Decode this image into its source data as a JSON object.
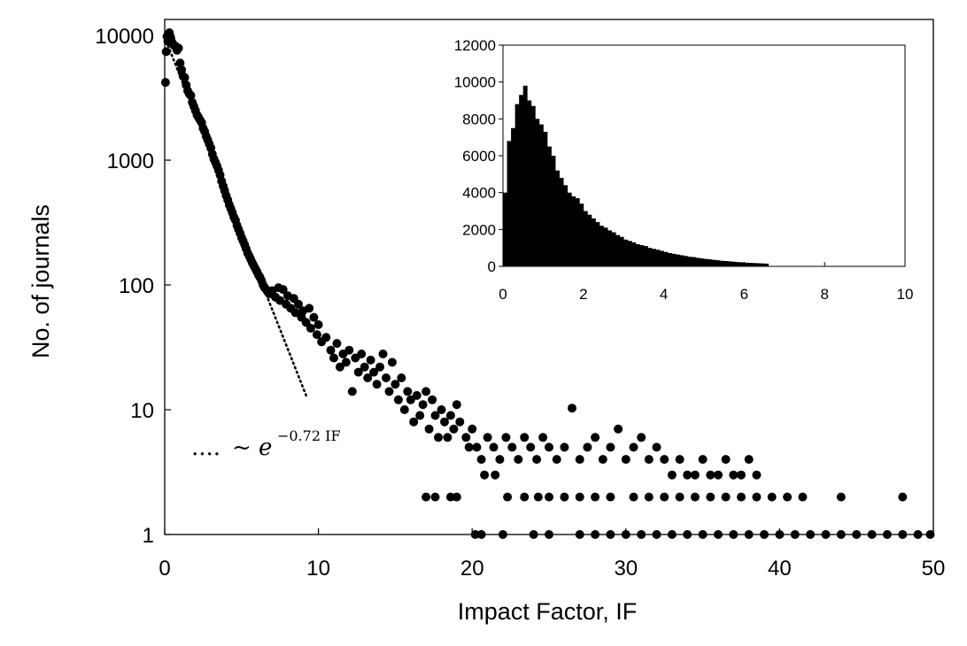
{
  "chart_data": [
    {
      "type": "scatter",
      "xlabel": "Impact Factor, IF",
      "ylabel": "No. of journals",
      "xlim": [
        0,
        50
      ],
      "ylim": [
        1,
        10000
      ],
      "yscale": "log",
      "xticks": [
        0,
        10,
        20,
        30,
        40,
        50
      ],
      "yticks": [
        1,
        10,
        100,
        1000,
        10000
      ],
      "xtick_labels": [
        "0",
        "10",
        "20",
        "30",
        "40",
        "50"
      ],
      "ytick_labels": [
        "1",
        "10",
        "100",
        "1000",
        "10000"
      ],
      "grid": false,
      "annotation": {
        "dots": "....",
        "prefix": "~ e",
        "exponent": "−0.72 IF"
      },
      "fit_line": {
        "style": "dotted",
        "x": [
          0.1,
          9.2
        ],
        "y": [
          9000,
          13
        ]
      },
      "series": [
        {
          "points": [
            [
              0.05,
              4200
            ],
            [
              0.1,
              7400
            ],
            [
              0.15,
              9800
            ],
            [
              0.2,
              9000
            ],
            [
              0.25,
              9400
            ],
            [
              0.3,
              10500
            ],
            [
              0.35,
              9900
            ],
            [
              0.4,
              9500
            ],
            [
              0.5,
              8700
            ],
            [
              0.6,
              8300
            ],
            [
              0.7,
              8200
            ],
            [
              0.8,
              7600
            ],
            [
              0.9,
              7900
            ],
            [
              1.0,
              6000
            ],
            [
              1.1,
              5300
            ],
            [
              1.2,
              4700
            ],
            [
              1.3,
              4600
            ],
            [
              1.4,
              4000
            ],
            [
              1.5,
              3600
            ],
            [
              1.6,
              3400
            ],
            [
              1.7,
              3300
            ],
            [
              1.8,
              2900
            ],
            [
              1.9,
              2700
            ],
            [
              2.0,
              2500
            ],
            [
              2.1,
              2300
            ],
            [
              2.2,
              2200
            ],
            [
              2.3,
              2100
            ],
            [
              2.4,
              2000
            ],
            [
              2.5,
              1800
            ],
            [
              2.6,
              1700
            ],
            [
              2.7,
              1550
            ],
            [
              2.8,
              1450
            ],
            [
              2.9,
              1350
            ],
            [
              3.0,
              1250
            ],
            [
              3.1,
              1120
            ],
            [
              3.2,
              1020
            ],
            [
              3.3,
              960
            ],
            [
              3.4,
              900
            ],
            [
              3.5,
              830
            ],
            [
              3.6,
              760
            ],
            [
              3.7,
              680
            ],
            [
              3.8,
              620
            ],
            [
              3.9,
              570
            ],
            [
              4.0,
              520
            ],
            [
              4.1,
              480
            ],
            [
              4.2,
              440
            ],
            [
              4.3,
              410
            ],
            [
              4.4,
              380
            ],
            [
              4.5,
              350
            ],
            [
              4.6,
              330
            ],
            [
              4.7,
              300
            ],
            [
              4.8,
              280
            ],
            [
              4.9,
              260
            ],
            [
              5.0,
              240
            ],
            [
              5.1,
              225
            ],
            [
              5.2,
              210
            ],
            [
              5.3,
              195
            ],
            [
              5.4,
              180
            ],
            [
              5.5,
              170
            ],
            [
              5.6,
              160
            ],
            [
              5.7,
              150
            ],
            [
              5.8,
              142
            ],
            [
              5.9,
              135
            ],
            [
              6.0,
              128
            ],
            [
              6.1,
              120
            ],
            [
              6.2,
              115
            ],
            [
              6.3,
              108
            ],
            [
              6.4,
              100
            ],
            [
              6.5,
              95
            ],
            [
              6.6,
              92
            ],
            [
              6.7,
              88
            ],
            [
              6.8,
              85
            ],
            [
              7.0,
              90
            ],
            [
              7.2,
              80
            ],
            [
              7.4,
              95
            ],
            [
              7.5,
              75
            ],
            [
              7.7,
              92
            ],
            [
              7.9,
              70
            ],
            [
              8.0,
              82
            ],
            [
              8.2,
              65
            ],
            [
              8.4,
              78
            ],
            [
              8.5,
              60
            ],
            [
              8.7,
              70
            ],
            [
              8.9,
              55
            ],
            [
              9.0,
              62
            ],
            [
              9.2,
              50
            ],
            [
              9.4,
              65
            ],
            [
              9.5,
              45
            ],
            [
              9.7,
              55
            ],
            [
              9.9,
              40
            ],
            [
              10.0,
              48
            ],
            [
              10.2,
              35
            ],
            [
              10.5,
              38
            ],
            [
              10.8,
              30
            ],
            [
              11.0,
              26
            ],
            [
              11.2,
              34
            ],
            [
              11.4,
              22
            ],
            [
              11.6,
              28
            ],
            [
              11.8,
              24
            ],
            [
              12.0,
              30
            ],
            [
              12.2,
              14
            ],
            [
              12.4,
              26
            ],
            [
              12.6,
              20
            ],
            [
              12.8,
              28
            ],
            [
              13.0,
              22
            ],
            [
              13.2,
              18
            ],
            [
              13.4,
              25
            ],
            [
              13.6,
              20
            ],
            [
              13.8,
              16
            ],
            [
              14.0,
              22
            ],
            [
              14.2,
              28
            ],
            [
              14.4,
              18
            ],
            [
              14.6,
              14
            ],
            [
              14.8,
              24
            ],
            [
              15.0,
              16
            ],
            [
              15.2,
              12
            ],
            [
              15.4,
              18
            ],
            [
              15.6,
              10
            ],
            [
              15.8,
              14
            ],
            [
              16.0,
              12
            ],
            [
              16.2,
              8
            ],
            [
              16.4,
              13
            ],
            [
              16.6,
              9
            ],
            [
              16.8,
              11
            ],
            [
              17.0,
              14
            ],
            [
              17.2,
              7
            ],
            [
              17.4,
              12
            ],
            [
              17.6,
              9
            ],
            [
              17.8,
              6
            ],
            [
              18.0,
              10
            ],
            [
              18.2,
              8
            ],
            [
              18.4,
              6
            ],
            [
              18.6,
              9
            ],
            [
              18.8,
              7
            ],
            [
              19.0,
              11
            ],
            [
              19.2,
              8
            ],
            [
              19.6,
              6
            ],
            [
              19.8,
              5
            ],
            [
              20.0,
              7
            ],
            [
              20.3,
              5
            ],
            [
              20.6,
              4
            ],
            [
              21.0,
              6
            ],
            [
              21.4,
              5
            ],
            [
              21.8,
              4
            ],
            [
              22.2,
              6
            ],
            [
              22.6,
              5
            ],
            [
              23.0,
              4
            ],
            [
              23.4,
              6
            ],
            [
              23.8,
              5
            ],
            [
              24.2,
              4
            ],
            [
              24.6,
              6
            ],
            [
              25.0,
              5
            ],
            [
              25.5,
              4
            ],
            [
              26.0,
              5
            ],
            [
              26.5,
              10.3
            ],
            [
              27.0,
              4
            ],
            [
              27.5,
              5
            ],
            [
              28.0,
              6
            ],
            [
              28.5,
              4
            ],
            [
              29.0,
              5
            ],
            [
              29.5,
              7
            ],
            [
              30.0,
              4
            ],
            [
              30.5,
              5
            ],
            [
              31.0,
              6
            ],
            [
              31.5,
              4
            ],
            [
              32.0,
              5
            ],
            [
              32.5,
              4
            ],
            [
              33.0,
              3
            ],
            [
              33.5,
              4
            ],
            [
              34.0,
              3
            ],
            [
              34.5,
              3
            ],
            [
              35.0,
              4
            ],
            [
              35.5,
              3
            ],
            [
              36.0,
              3
            ],
            [
              36.5,
              4
            ],
            [
              37.0,
              3
            ],
            [
              37.5,
              3
            ],
            [
              38.0,
              4
            ],
            [
              38.5,
              3
            ],
            [
              17.0,
              2
            ],
            [
              17.6,
              2
            ],
            [
              18.6,
              2
            ],
            [
              19.0,
              2
            ],
            [
              20.8,
              3
            ],
            [
              21.5,
              3
            ],
            [
              22.3,
              2
            ],
            [
              23.4,
              2
            ],
            [
              24.3,
              2
            ],
            [
              25.0,
              2
            ],
            [
              26.0,
              2
            ],
            [
              27.0,
              2
            ],
            [
              28.0,
              2
            ],
            [
              29.0,
              2
            ],
            [
              30.5,
              2
            ],
            [
              31.5,
              2
            ],
            [
              32.5,
              2
            ],
            [
              33.5,
              2
            ],
            [
              34.5,
              2
            ],
            [
              35.5,
              2
            ],
            [
              36.5,
              2
            ],
            [
              37.5,
              2
            ],
            [
              38.5,
              2
            ],
            [
              39.5,
              2
            ],
            [
              40.5,
              2
            ],
            [
              41.5,
              2
            ],
            [
              44.0,
              2
            ],
            [
              48.0,
              2
            ],
            [
              20.2,
              1
            ],
            [
              20.6,
              1
            ],
            [
              22.0,
              1
            ],
            [
              24.0,
              1
            ],
            [
              25.0,
              1
            ],
            [
              27.0,
              1
            ],
            [
              28.0,
              1
            ],
            [
              29.0,
              1
            ],
            [
              30.0,
              1
            ],
            [
              31.0,
              1
            ],
            [
              32.0,
              1
            ],
            [
              33.0,
              1
            ],
            [
              34.0,
              1
            ],
            [
              35.0,
              1
            ],
            [
              36.0,
              1
            ],
            [
              37.0,
              1
            ],
            [
              38.0,
              1
            ],
            [
              39.0,
              1
            ],
            [
              40.0,
              1
            ],
            [
              41.0,
              1
            ],
            [
              42.0,
              1
            ],
            [
              43.0,
              1
            ],
            [
              44.0,
              1
            ],
            [
              45.0,
              1
            ],
            [
              46.0,
              1
            ],
            [
              47.0,
              1
            ],
            [
              48.0,
              1
            ],
            [
              49.0,
              1
            ],
            [
              49.8,
              1
            ]
          ]
        }
      ]
    },
    {
      "type": "bar",
      "inset": true,
      "xlim": [
        0,
        10
      ],
      "ylim": [
        0,
        12000
      ],
      "xticks": [
        0,
        2,
        4,
        6,
        8,
        10
      ],
      "yticks": [
        0,
        2000,
        4000,
        6000,
        8000,
        10000,
        12000
      ],
      "xtick_labels": [
        "0",
        "2",
        "4",
        "6",
        "8",
        "10"
      ],
      "ytick_labels": [
        "0",
        "2000",
        "4000",
        "6000",
        "8000",
        "10000",
        "12000"
      ],
      "bin_width": 0.1,
      "bin_start": 0,
      "values": [
        4000,
        6800,
        7500,
        8800,
        9300,
        9800,
        9000,
        8700,
        8000,
        7700,
        7300,
        6500,
        6000,
        5200,
        4800,
        4400,
        4000,
        3800,
        3700,
        3400,
        3000,
        2800,
        2600,
        2400,
        2200,
        2100,
        1950,
        1850,
        1700,
        1600,
        1450,
        1380,
        1300,
        1200,
        1150,
        1100,
        1000,
        950,
        900,
        840,
        780,
        720,
        680,
        640,
        600,
        560,
        520,
        500,
        460,
        430,
        400,
        380,
        350,
        330,
        300,
        290,
        270,
        250,
        230,
        220,
        200,
        190,
        180,
        170,
        160,
        150,
        0,
        0,
        0,
        0,
        0,
        0,
        0,
        0,
        0,
        0,
        0,
        0,
        0,
        0,
        0,
        0,
        0,
        0,
        0,
        0,
        0,
        0,
        0,
        0,
        0,
        0,
        0,
        0,
        0,
        0,
        0,
        0,
        0,
        0
      ]
    }
  ]
}
